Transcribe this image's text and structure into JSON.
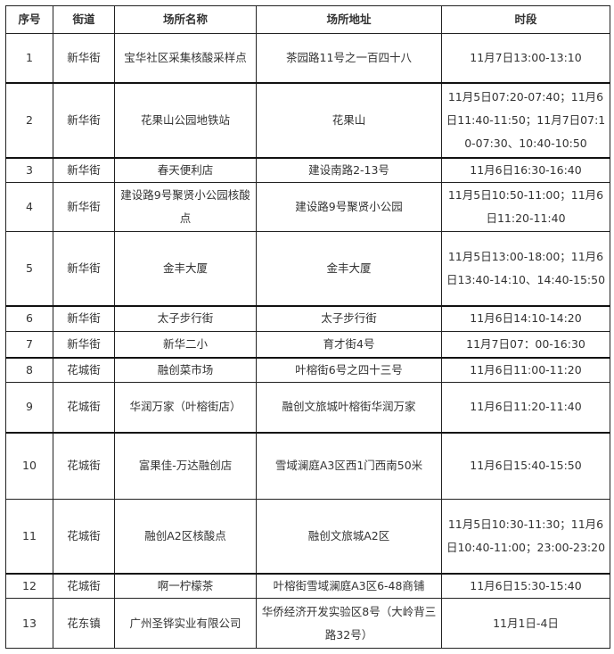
{
  "headers": [
    "序号",
    "街道",
    "场所名称",
    "场所地址",
    "时段"
  ],
  "rows": [
    {
      "no": "1",
      "street": "新华街",
      "name": "宝华社区采集核酸采样点",
      "address": "茶园路11号之一百四十八",
      "time": "11月7日13:00-13:10"
    },
    {
      "no": "2",
      "street": "新华街",
      "name": "花果山公园地铁站",
      "address": "花果山",
      "time": "11月5日07:20-07:40；11月6日11:40-11:50；11月7日07:10-07:30、10:40-10:50"
    },
    {
      "no": "3",
      "street": "新华街",
      "name": "春天便利店",
      "address": "建设南路2-13号",
      "time": "11月6日16:30-16:40"
    },
    {
      "no": "4",
      "street": "新华街",
      "name": "建设路9号聚贤小公园核酸点",
      "address": "建设路9号聚贤小公园",
      "time": "11月5日10:50-11:00；11月6日11:20-11:40"
    },
    {
      "no": "5",
      "street": "新华街",
      "name": "金丰大厦",
      "address": "金丰大厦",
      "time": "11月5日13:00-18:00；11月6日13:40-14:10、14:40-15:50"
    },
    {
      "no": "6",
      "street": "新华街",
      "name": "太子步行街",
      "address": "太子步行街",
      "time": "11月6日14:10-14:20"
    },
    {
      "no": "7",
      "street": "新华街",
      "name": "新华二小",
      "address": "育才街4号",
      "time": "11月7日07：00-16:30"
    },
    {
      "no": "8",
      "street": "花城街",
      "name": "融创菜市场",
      "address": "叶榕街6号之四十三号",
      "time": "11月6日11:00-11:20"
    },
    {
      "no": "9",
      "street": "花城街",
      "name": "华润万家（叶榕街店）",
      "address": "融创文旅城叶榕街华润万家",
      "time": "11月6日11:20-11:40"
    },
    {
      "no": "10",
      "street": "花城街",
      "name": "富果佳-万达融创店",
      "address": "雪域澜庭A3区西1门西南50米",
      "time": "11月6日15:40-15:50"
    },
    {
      "no": "11",
      "street": "花城街",
      "name": "融创A2区核酸点",
      "address": "融创文旅城A2区",
      "time": "11月5日10:30-11:30；11月6日10:40-11:00；23:00-23:20"
    },
    {
      "no": "12",
      "street": "花城街",
      "name": "啊一柠檬茶",
      "address": "叶榕街雪域澜庭A3区6-48商铺",
      "time": "11月6日15:30-15:40"
    },
    {
      "no": "13",
      "street": "花东镇",
      "name": "广州圣铧实业有限公司",
      "address": "华侨经济开发实验区8号（大岭背三路32号）",
      "time": "11月1日-4日"
    }
  ]
}
